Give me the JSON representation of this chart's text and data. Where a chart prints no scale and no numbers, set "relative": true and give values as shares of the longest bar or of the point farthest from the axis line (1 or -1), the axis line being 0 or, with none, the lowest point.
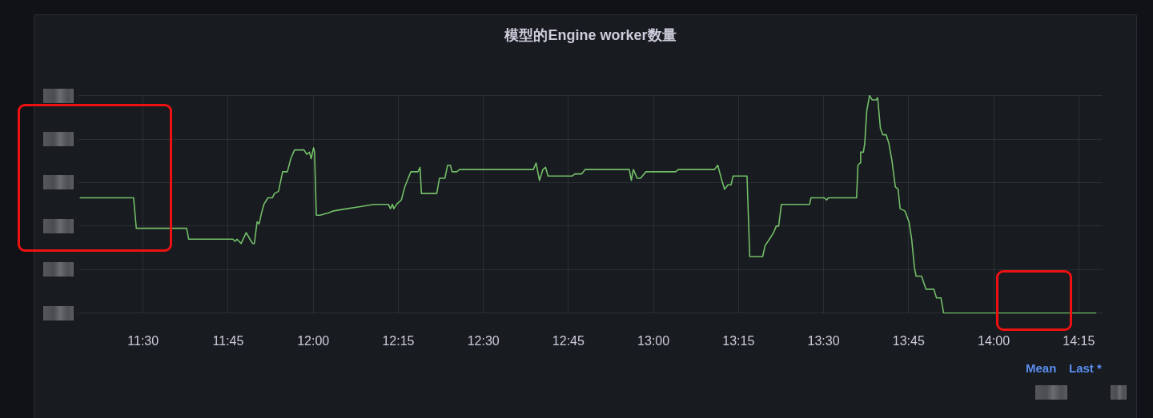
{
  "chart_data": {
    "type": "line",
    "title": "模型的Engine worker数量",
    "x": [
      11.315,
      11.472,
      11.48,
      11.628,
      11.634,
      11.764,
      11.77,
      11.776,
      11.788,
      11.803,
      11.814,
      11.822,
      11.827,
      11.835,
      11.841,
      11.848,
      11.855,
      11.867,
      11.88,
      11.886,
      11.898,
      11.91,
      11.924,
      11.934,
      11.945,
      11.973,
      11.981,
      11.989,
      11.994,
      12.001,
      12.004,
      12.009,
      12.02,
      12.044,
      12.06,
      12.099,
      12.139,
      12.178,
      12.221,
      12.227,
      12.233,
      12.237,
      12.245,
      12.259,
      12.269,
      12.287,
      12.308,
      12.314,
      12.318,
      12.363,
      12.371,
      12.387,
      12.395,
      12.403,
      12.408,
      12.422,
      12.43,
      12.647,
      12.655,
      12.665,
      12.675,
      12.683,
      12.69,
      12.761,
      12.769,
      12.789,
      12.799,
      12.923,
      12.929,
      12.935,
      12.941,
      12.952,
      12.962,
      12.978,
      13.065,
      13.073,
      13.179,
      13.189,
      13.201,
      13.209,
      13.219,
      13.228,
      13.234,
      13.275,
      13.283,
      13.321,
      13.328,
      13.341,
      13.353,
      13.361,
      13.368,
      13.376,
      13.459,
      13.463,
      13.502,
      13.509,
      13.514,
      13.597,
      13.601,
      13.607,
      13.609,
      13.617,
      13.621,
      13.627,
      13.635,
      13.643,
      13.654,
      13.659,
      13.667,
      13.674,
      13.684,
      13.692,
      13.701,
      13.711,
      13.719,
      13.725,
      13.739,
      13.751,
      13.759,
      13.767,
      13.772,
      13.788,
      13.801,
      13.824,
      13.832,
      13.845,
      13.853,
      14.3
    ],
    "values": [
      0.53,
      0.53,
      0.39,
      0.39,
      0.34,
      0.34,
      0.33,
      0.34,
      0.32,
      0.37,
      0.34,
      0.32,
      0.32,
      0.42,
      0.41,
      0.46,
      0.5,
      0.53,
      0.53,
      0.55,
      0.56,
      0.65,
      0.65,
      0.71,
      0.75,
      0.75,
      0.73,
      0.74,
      0.71,
      0.76,
      0.74,
      0.45,
      0.45,
      0.46,
      0.47,
      0.48,
      0.49,
      0.5,
      0.5,
      0.48,
      0.5,
      0.48,
      0.5,
      0.52,
      0.58,
      0.65,
      0.65,
      0.67,
      0.55,
      0.55,
      0.62,
      0.62,
      0.68,
      0.68,
      0.65,
      0.65,
      0.66,
      0.66,
      0.69,
      0.61,
      0.66,
      0.67,
      0.63,
      0.63,
      0.64,
      0.64,
      0.66,
      0.66,
      0.66,
      0.61,
      0.66,
      0.62,
      0.62,
      0.65,
      0.65,
      0.66,
      0.66,
      0.68,
      0.61,
      0.57,
      0.59,
      0.59,
      0.63,
      0.63,
      0.26,
      0.26,
      0.31,
      0.34,
      0.37,
      0.4,
      0.4,
      0.5,
      0.5,
      0.53,
      0.53,
      0.52,
      0.53,
      0.53,
      0.68,
      0.69,
      0.74,
      0.74,
      0.78,
      0.93,
      1,
      0.98,
      0.98,
      0.99,
      0.85,
      0.82,
      0.82,
      0.78,
      0.7,
      0.58,
      0.57,
      0.48,
      0.47,
      0.42,
      0.34,
      0.21,
      0.17,
      0.17,
      0.11,
      0.11,
      0.07,
      0.07,
      0,
      0
    ],
    "color": "#73bf69",
    "relative": true,
    "xlim": [
      11.31,
      14.32
    ],
    "xticks": [
      {
        "value": 11.5,
        "label": "11:30"
      },
      {
        "value": 11.75,
        "label": "11:45"
      },
      {
        "value": 12,
        "label": "12:00"
      },
      {
        "value": 12.25,
        "label": "12:15"
      },
      {
        "value": 12.5,
        "label": "12:30"
      },
      {
        "value": 12.75,
        "label": "12:45"
      },
      {
        "value": 13,
        "label": "13:00"
      },
      {
        "value": 13.25,
        "label": "13:15"
      },
      {
        "value": 13.5,
        "label": "13:30"
      },
      {
        "value": 13.75,
        "label": "13:45"
      },
      {
        "value": 14,
        "label": "14:00"
      },
      {
        "value": 14.25,
        "label": "14:15"
      }
    ],
    "grid": true,
    "marker": "none",
    "line_style": "solid",
    "annotations": [
      "Mean",
      "Last *"
    ]
  }
}
